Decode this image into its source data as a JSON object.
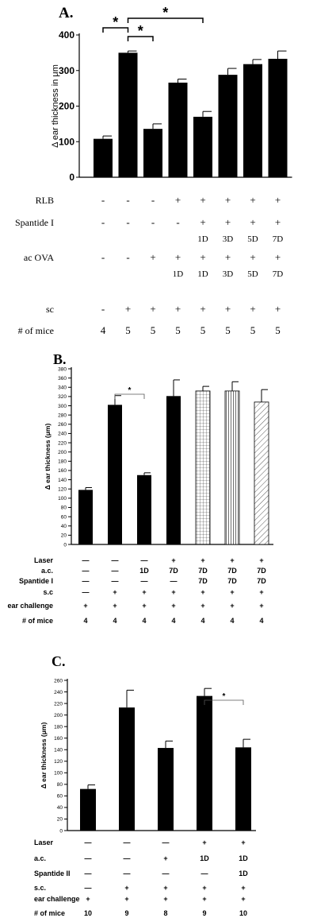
{
  "chart_data": [
    {
      "type": "bar",
      "panel_label": "A.",
      "ylabel": "Δ ear thickness in μm",
      "ylim": [
        0,
        400
      ],
      "yticks": [
        0,
        100,
        200,
        300,
        400
      ],
      "values": [
        108,
        350,
        136,
        266,
        170,
        288,
        318,
        333
      ],
      "errors": [
        8,
        5,
        14,
        10,
        15,
        18,
        13,
        22
      ],
      "significance": [
        {
          "from": 0,
          "to": 1,
          "label": "*"
        },
        {
          "from": 1,
          "to": 2,
          "label": "*"
        },
        {
          "from": 1,
          "to": 4,
          "label": "*"
        }
      ],
      "conditions": [
        {
          "label": "RLB",
          "cells": [
            "-",
            "-",
            "-",
            "+",
            "+",
            "+",
            "+",
            "+"
          ]
        },
        {
          "label": "Spantide I",
          "cells": [
            "-",
            "-",
            "-",
            "-",
            "+",
            "+",
            "+",
            "+"
          ],
          "sub": [
            "",
            "",
            "",
            "",
            "1D",
            "3D",
            "5D",
            "7D"
          ]
        },
        {
          "label": "ac OVA",
          "cells": [
            "-",
            "-",
            "+",
            "+",
            "+",
            "+",
            "+",
            "+"
          ],
          "sub": [
            "",
            "",
            "",
            "1D",
            "1D",
            "3D",
            "5D",
            "7D"
          ]
        },
        {
          "label": "sc",
          "cells": [
            "-",
            "+",
            "+",
            "+",
            "+",
            "+",
            "+",
            "+"
          ]
        },
        {
          "label": "# of mice",
          "cells": [
            "4",
            "5",
            "5",
            "5",
            "5",
            "5",
            "5",
            "5"
          ]
        }
      ]
    },
    {
      "type": "bar",
      "panel_label": "B.",
      "ylabel": "Δ ear thickness (μm)",
      "ylim": [
        0,
        380
      ],
      "yticks": [
        0,
        20,
        40,
        60,
        80,
        100,
        120,
        140,
        160,
        180,
        200,
        220,
        240,
        260,
        280,
        300,
        320,
        340,
        360,
        380
      ],
      "values": [
        118,
        302,
        150,
        321,
        332,
        332,
        308
      ],
      "errors": [
        5,
        20,
        5,
        35,
        10,
        20,
        27
      ],
      "patterns": [
        "solid",
        "solid",
        "solid",
        "solid",
        "grid",
        "vertical",
        "diagonal"
      ],
      "significance": [
        {
          "from": 1,
          "to": 2,
          "label": "*"
        }
      ],
      "conditions": [
        {
          "label": "Laser",
          "cells": [
            "—",
            "—",
            "—",
            "+",
            "+",
            "+",
            "+"
          ]
        },
        {
          "label": "a.c.",
          "cells": [
            "—",
            "—",
            "1D",
            "7D",
            "7D",
            "7D",
            "7D"
          ]
        },
        {
          "label": "Spantide I",
          "cells": [
            "—",
            "—",
            "—",
            "—",
            "7D",
            "7D",
            "7D"
          ]
        },
        {
          "label": "s.c",
          "cells": [
            "—",
            "+",
            "+",
            "+",
            "+",
            "+",
            "+"
          ]
        },
        {
          "label": "ear challenge",
          "cells": [
            "+",
            "+",
            "+",
            "+",
            "+",
            "+",
            "+"
          ]
        },
        {
          "label": "# of mice",
          "cells": [
            "4",
            "4",
            "4",
            "4",
            "4",
            "4",
            "4"
          ]
        }
      ]
    },
    {
      "type": "bar",
      "panel_label": "C.",
      "ylabel": "Δ ear thickness (μm)",
      "ylim": [
        0,
        260
      ],
      "yticks": [
        0,
        20,
        40,
        60,
        80,
        100,
        120,
        140,
        160,
        180,
        200,
        220,
        240,
        260
      ],
      "values": [
        72,
        213,
        143,
        233,
        144
      ],
      "errors": [
        7,
        30,
        12,
        13,
        14
      ],
      "significance": [
        {
          "from": 3,
          "to": 4,
          "label": "*"
        }
      ],
      "conditions": [
        {
          "label": "Laser",
          "cells": [
            "—",
            "—",
            "—",
            "+",
            "+"
          ]
        },
        {
          "label": "a.c.",
          "cells": [
            "—",
            "—",
            "+",
            "1D",
            "1D"
          ]
        },
        {
          "label": "Spantide II",
          "cells": [
            "—",
            "—",
            "—",
            "—",
            "1D"
          ]
        },
        {
          "label": "s.c.",
          "cells": [
            "—",
            "+",
            "+",
            "+",
            "+"
          ]
        },
        {
          "label": "ear challenge",
          "cells": [
            "+",
            "+",
            "+",
            "+",
            "+"
          ]
        },
        {
          "label": "# of mice",
          "cells": [
            "10",
            "9",
            "8",
            "9",
            "10"
          ]
        }
      ]
    }
  ]
}
